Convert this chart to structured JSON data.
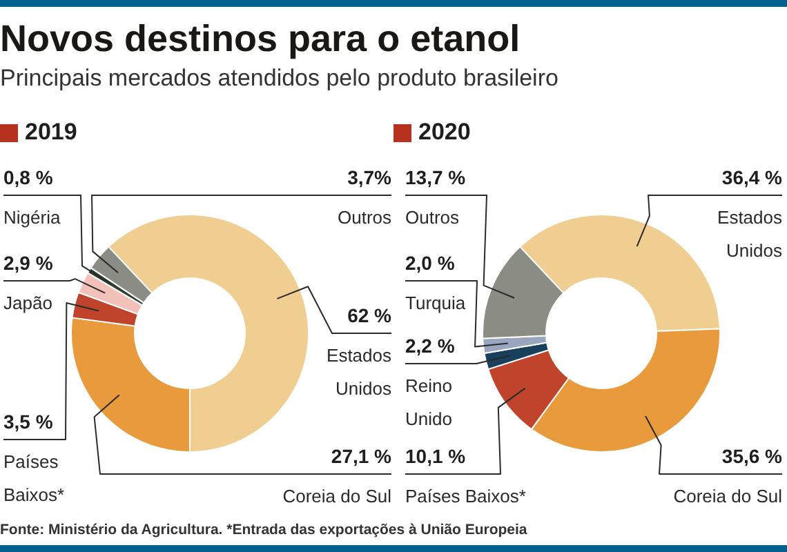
{
  "chart_data": [
    {
      "type": "other",
      "title": "Novos destinos para o etanol",
      "subtitle": "Principais mercados atendidos pelo produto brasileiro",
      "annotations": [
        "Fonte: Ministério da Agricultura. *Entrada das exportações à União Europeia"
      ]
    },
    {
      "type": "donut",
      "title": "2019",
      "categories": [
        "Estados Unidos",
        "Coreia do Sul",
        "Países Baixos*",
        "Japão",
        "Nigéria",
        "Outros"
      ],
      "values": [
        62,
        27.1,
        3.5,
        2.9,
        0.8,
        3.7
      ],
      "colors": [
        "#f0cd91",
        "#e89a3c",
        "#c0432b",
        "#f2c1b9",
        "#2f3f36",
        "#8b8d85"
      ],
      "value_labels": [
        "62 %",
        "27,1 %",
        "3,5 %",
        "2,9 %",
        "0,8 %",
        "3,7%"
      ]
    },
    {
      "type": "donut",
      "title": "2020",
      "categories": [
        "Estados Unidos",
        "Coreia do Sul",
        "Países Baixos*",
        "Reino Unido",
        "Turquia",
        "Outros"
      ],
      "values": [
        36.4,
        35.6,
        10.1,
        2.2,
        2.0,
        13.7
      ],
      "colors": [
        "#f0cd91",
        "#e89a3c",
        "#c0432b",
        "#183f5c",
        "#98a7bf",
        "#8b8d85"
      ],
      "value_labels": [
        "36,4 %",
        "35,6 %",
        "10,1 %",
        "2,2 %",
        "2,0 %",
        "13,7 %"
      ]
    }
  ]
}
